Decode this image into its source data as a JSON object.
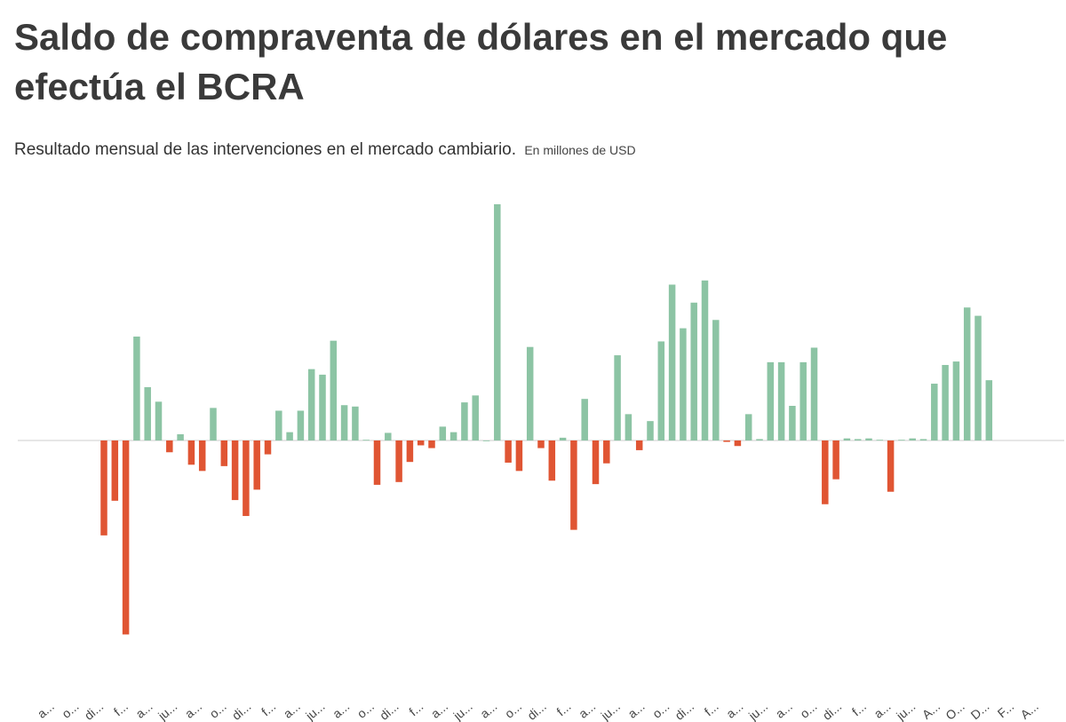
{
  "title": "Saldo de compraventa de dólares en el mercado que efectúa el BCRA",
  "subtitle": "Resultado mensual de las intervenciones en el mercado cambiario.",
  "unit": "En millones de USD",
  "colors": {
    "positive": "#8cc4a4",
    "negative": "#e05533",
    "baseline": "#cccccc"
  },
  "chart_data": {
    "type": "bar",
    "title": "Saldo de compraventa de dólares en el mercado que efectúa el BCRA",
    "subtitle": "Resultado mensual de las intervenciones en el mercado cambiario.",
    "ylabel": "En millones de USD",
    "grid": false,
    "legend": "none",
    "tick_labels": [
      "a...",
      "o...",
      "di...",
      "f...",
      "a...",
      "ju...",
      "a...",
      "o...",
      "di...",
      "f...",
      "a...",
      "ju...",
      "a...",
      "o...",
      "di...",
      "f...",
      "a...",
      "ju...",
      "a...",
      "o...",
      "di...",
      "f...",
      "a...",
      "ju...",
      "a...",
      "o...",
      "di...",
      "f...",
      "a...",
      "ju...",
      "a...",
      "o...",
      "di...",
      "f...",
      "a...",
      "ju...",
      "A...",
      "O...",
      "D...",
      "F...",
      "A..."
    ],
    "values": [
      -1370,
      -870,
      -2800,
      1500,
      770,
      560,
      -170,
      90,
      -350,
      -440,
      470,
      -370,
      -860,
      -1090,
      -710,
      -200,
      430,
      120,
      430,
      1030,
      950,
      1440,
      510,
      490,
      10,
      -640,
      110,
      -600,
      -310,
      -70,
      -110,
      200,
      120,
      550,
      650,
      0,
      3410,
      -320,
      -440,
      1350,
      -110,
      -580,
      40,
      -1290,
      600,
      -630,
      -330,
      1230,
      380,
      -140,
      280,
      1430,
      2250,
      1620,
      1990,
      2310,
      1740,
      -20,
      -80,
      380,
      20,
      1130,
      1130,
      500,
      1130,
      1340,
      -920,
      -560,
      30,
      20,
      30,
      10,
      -740,
      10,
      30,
      20,
      820,
      1090,
      1140,
      1920,
      1800,
      870
    ],
    "ylim": [
      -3100,
      3500
    ]
  }
}
